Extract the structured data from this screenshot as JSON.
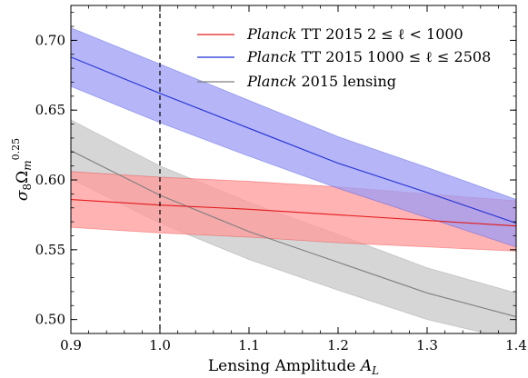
{
  "chart_data": {
    "type": "line",
    "xlabel": "Lensing Amplitude A_L",
    "ylabel": "σ8 Ωm^0.25",
    "xlim": [
      0.9,
      1.4
    ],
    "ylim": [
      0.49,
      0.725
    ],
    "xticks": [
      "0.9",
      "1.0",
      "1.1",
      "1.2",
      "1.3",
      "1.4"
    ],
    "yticks": [
      "0.50",
      "0.55",
      "0.60",
      "0.65",
      "0.70"
    ],
    "grid": false,
    "legend_position": "top-right",
    "reference_line": {
      "x": 1.0,
      "style": "dashed",
      "color": "#000000"
    },
    "series": [
      {
        "name": "Planck TT 2015 2 ≤ ℓ < 1000",
        "legend_italic": "Planck",
        "legend_rest": " TT 2015 2 ≤ ℓ < 1000",
        "color": "#e31a1c",
        "fill": "#ff9a9a",
        "x": [
          0.9,
          1.0,
          1.1,
          1.2,
          1.3,
          1.4
        ],
        "y": [
          0.586,
          0.582,
          0.579,
          0.575,
          0.571,
          0.567
        ],
        "y_lower": [
          0.566,
          0.562,
          0.559,
          0.555,
          0.552,
          0.549
        ],
        "y_upper": [
          0.606,
          0.602,
          0.599,
          0.595,
          0.59,
          0.585
        ]
      },
      {
        "name": "Planck TT 2015 1000 ≤ ℓ ≤ 2508",
        "legend_italic": "Planck",
        "legend_rest": " TT 2015 1000 ≤ ℓ ≤ 2508",
        "color": "#1f2fd6",
        "fill": "#9c9cf4",
        "x": [
          0.9,
          1.0,
          1.1,
          1.2,
          1.3,
          1.4
        ],
        "y": [
          0.688,
          0.662,
          0.637,
          0.612,
          0.591,
          0.569
        ],
        "y_lower": [
          0.667,
          0.641,
          0.617,
          0.594,
          0.573,
          0.552
        ],
        "y_upper": [
          0.709,
          0.683,
          0.657,
          0.631,
          0.609,
          0.586
        ]
      },
      {
        "name": "Planck 2015 lensing",
        "legend_italic": "Planck",
        "legend_rest": " 2015 lensing",
        "color": "#7f7f7f",
        "fill": "#c8c8c8",
        "x": [
          0.9,
          1.0,
          1.1,
          1.2,
          1.3,
          1.4
        ],
        "y": [
          0.621,
          0.589,
          0.563,
          0.541,
          0.519,
          0.502
        ],
        "y_lower": [
          0.601,
          0.569,
          0.543,
          0.521,
          0.5,
          0.485
        ],
        "y_upper": [
          0.643,
          0.61,
          0.584,
          0.561,
          0.537,
          0.519
        ]
      }
    ]
  }
}
